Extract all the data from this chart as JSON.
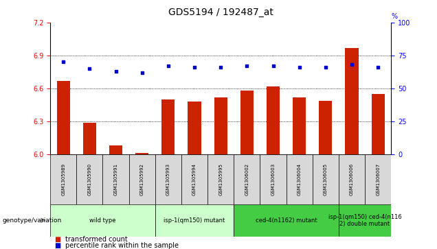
{
  "title": "GDS5194 / 192487_at",
  "samples": [
    "GSM1305989",
    "GSM1305990",
    "GSM1305991",
    "GSM1305992",
    "GSM1305993",
    "GSM1305994",
    "GSM1305995",
    "GSM1306002",
    "GSM1306003",
    "GSM1306004",
    "GSM1306005",
    "GSM1306006",
    "GSM1306007"
  ],
  "transformed_count": [
    6.67,
    6.29,
    6.08,
    6.01,
    6.5,
    6.48,
    6.52,
    6.58,
    6.62,
    6.52,
    6.49,
    6.97,
    6.55
  ],
  "percentile_rank": [
    70,
    65,
    63,
    62,
    67,
    66,
    66,
    67,
    67,
    66,
    66,
    68,
    66
  ],
  "ylim_left": [
    6.0,
    7.2
  ],
  "ylim_right": [
    0,
    100
  ],
  "yticks_left": [
    6.0,
    6.3,
    6.6,
    6.9,
    7.2
  ],
  "yticks_right": [
    0,
    25,
    50,
    75,
    100
  ],
  "bar_color": "#cc2200",
  "dot_color": "#0000cc",
  "bar_width": 0.5,
  "hgrid_lines": [
    6.3,
    6.6,
    6.9
  ],
  "group_ranges": [
    {
      "start": 0,
      "end": 3,
      "color": "#ccffcc",
      "label": "wild type"
    },
    {
      "start": 4,
      "end": 6,
      "color": "#ccffcc",
      "label": "isp-1(qm150) mutant"
    },
    {
      "start": 7,
      "end": 10,
      "color": "#44cc44",
      "label": "ced-4(n1162) mutant"
    },
    {
      "start": 11,
      "end": 12,
      "color": "#44cc44",
      "label": "isp-1(qm150) ced-4(n116\n2) double mutant"
    }
  ],
  "legend_transformed": "transformed count",
  "legend_percentile": "percentile rank within the sample",
  "genotype_label": "genotype/variation",
  "bg_color": "#ffffff",
  "cell_color": "#d8d8d8",
  "title_fontsize": 10,
  "tick_fontsize": 7,
  "sample_fontsize": 5,
  "group_fontsize": 6,
  "legend_fontsize": 7
}
